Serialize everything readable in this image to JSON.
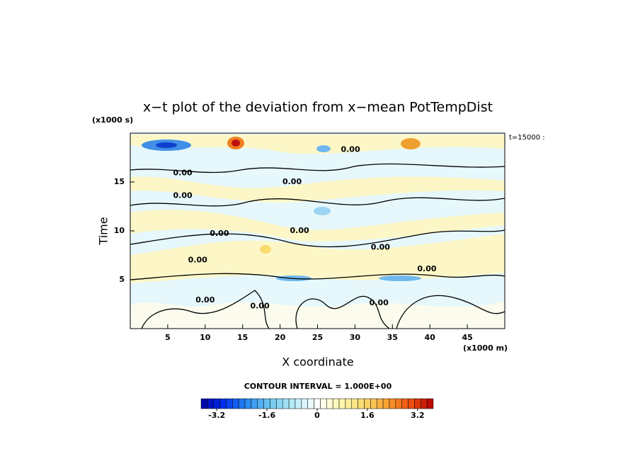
{
  "chart_data": {
    "type": "contour",
    "title": "x−t plot of the deviation from x−mean PotTempDist",
    "y_unit": "(x1000 s)",
    "x_unit": "(x1000 m)",
    "time_label": "t=15000 :",
    "ylabel": "Time",
    "xlabel": "X coordinate",
    "xlim": [
      0,
      50
    ],
    "ylim": [
      0,
      20
    ],
    "xticks": [
      5,
      10,
      15,
      20,
      25,
      30,
      35,
      40,
      45
    ],
    "yticks": [
      5,
      10,
      15
    ],
    "contour_interval": "CONTOUR INTERVAL = 1.000E+00",
    "contour_labels": [
      {
        "label": "0.00",
        "x": 7.0,
        "y": 15.9
      },
      {
        "label": "0.00",
        "x": 7.0,
        "y": 13.6
      },
      {
        "label": "0.00",
        "x": 11.9,
        "y": 9.7
      },
      {
        "label": "0.00",
        "x": 9.0,
        "y": 7.0
      },
      {
        "label": "0.00",
        "x": 10.0,
        "y": 2.9
      },
      {
        "label": "0.00",
        "x": 17.3,
        "y": 2.3
      },
      {
        "label": "0.00",
        "x": 21.6,
        "y": 15.0
      },
      {
        "label": "0.00",
        "x": 22.6,
        "y": 10.0
      },
      {
        "label": "0.00",
        "x": 29.4,
        "y": 18.3
      },
      {
        "label": "0.00",
        "x": 33.4,
        "y": 8.3
      },
      {
        "label": "0.00",
        "x": 33.2,
        "y": 2.6
      },
      {
        "label": "0.00",
        "x": 39.6,
        "y": 6.1
      }
    ],
    "colorbar": {
      "lim": [
        -3.7,
        3.7
      ],
      "steps": 37,
      "ticks": [
        -3.2,
        -1.6,
        0,
        1.6,
        3.2
      ],
      "colors": [
        "#0000a0",
        "#0030f0",
        "#2a8cf0",
        "#70c8f0",
        "#b8ecf8",
        "#ffffff",
        "#fff8b0",
        "#f8dc70",
        "#f8a030",
        "#f05010",
        "#b00000"
      ]
    }
  }
}
